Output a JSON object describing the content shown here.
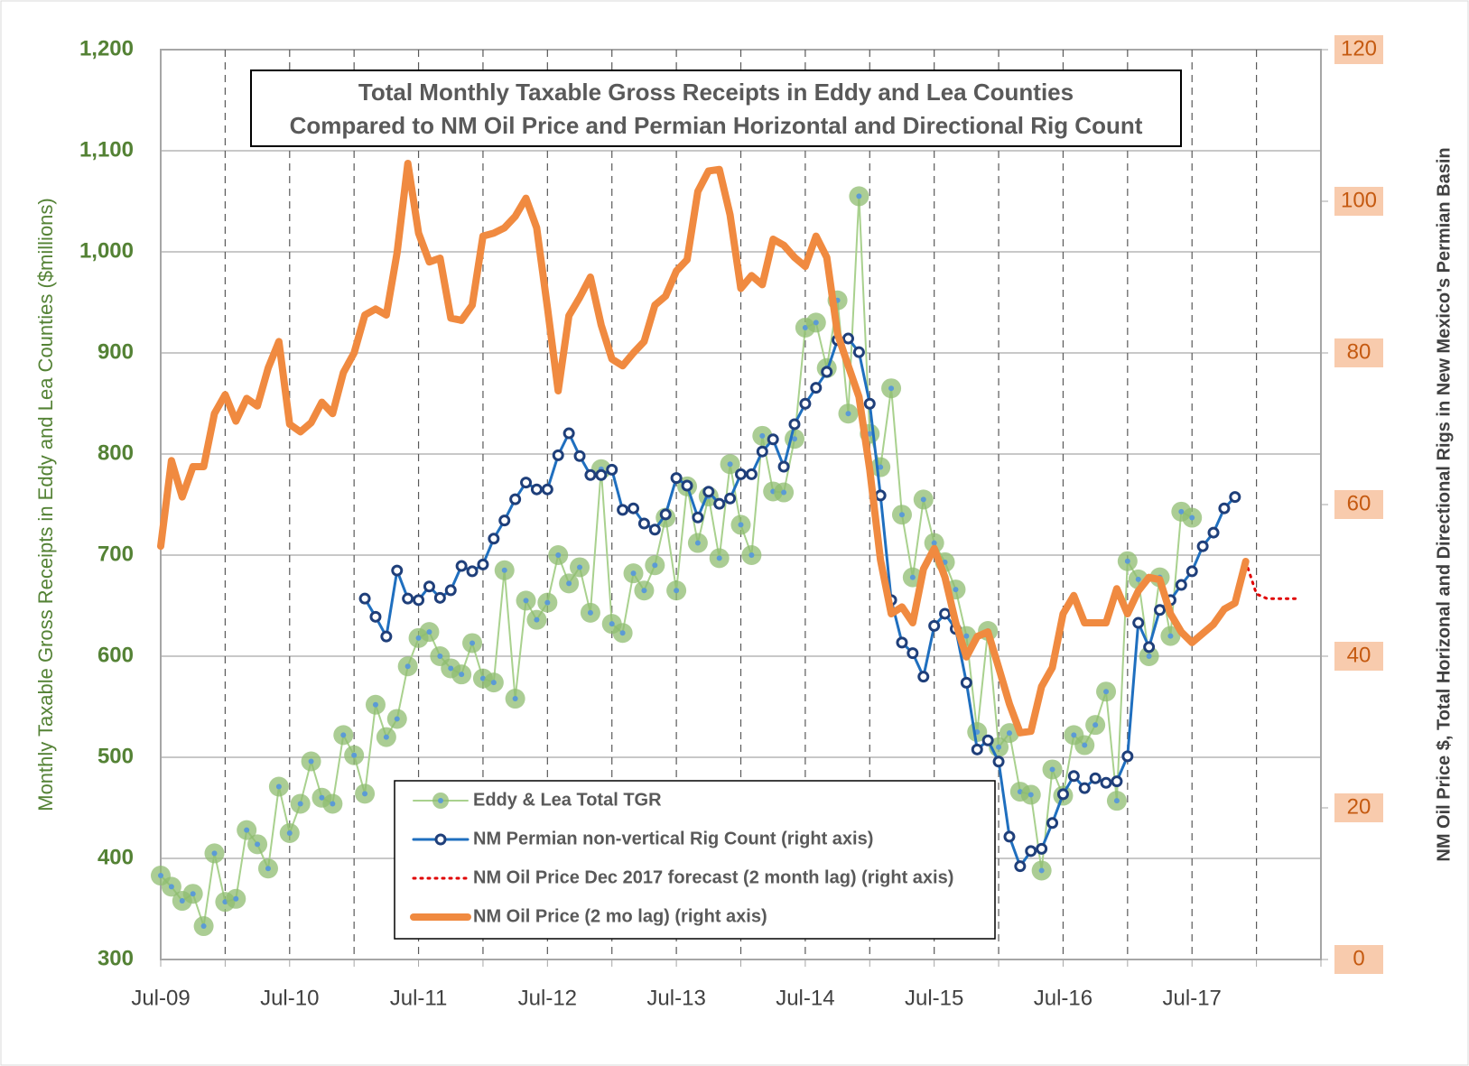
{
  "chart_data": {
    "type": "line",
    "title": "Total Monthly Taxable Gross Receipts in Eddy and Lea Counties",
    "subtitle": "Compared to NM Oil Price and Permian Horizontal and Directional Rig Count",
    "y_label": "Monthly Taxable Gross Receipts in Eddy and Lea Counties ($millions)",
    "y2_label": "NM Oil Price $, Total Horizonal and Directional Rigs in New Mexico's Permian Basin",
    "categories": [
      "Jul-09",
      null,
      null,
      null,
      null,
      null,
      null,
      null,
      null,
      null,
      null,
      null,
      "Jul-10",
      null,
      null,
      null,
      null,
      null,
      null,
      null,
      null,
      null,
      null,
      null,
      "Jul-11",
      null,
      null,
      null,
      null,
      null,
      null,
      null,
      null,
      null,
      null,
      null,
      "Jul-12",
      null,
      null,
      null,
      null,
      null,
      null,
      null,
      null,
      null,
      null,
      null,
      "Jul-13",
      null,
      null,
      null,
      null,
      null,
      null,
      null,
      null,
      null,
      null,
      null,
      "Jul-14",
      null,
      null,
      null,
      null,
      null,
      null,
      null,
      null,
      null,
      null,
      null,
      "Jul-15",
      null,
      null,
      null,
      null,
      null,
      null,
      null,
      null,
      null,
      null,
      null,
      "Jul-16",
      null,
      null,
      null,
      null,
      null,
      null,
      null,
      null,
      null,
      null,
      null,
      "Jul-17",
      null,
      null,
      null,
      null,
      null,
      null,
      null,
      null,
      null,
      null,
      null,
      null
    ],
    "ylim": [
      300,
      1200
    ],
    "yticks": [
      300,
      400,
      500,
      600,
      700,
      800,
      900,
      {
        "value": 1000,
        "label": "1,000"
      },
      {
        "value": 1100,
        "label": "1,100"
      },
      {
        "value": 1200,
        "label": "1,200"
      }
    ],
    "y2lim": [
      0,
      120
    ],
    "y2ticks": [
      0,
      20,
      40,
      60,
      80,
      100,
      120
    ],
    "grid": true,
    "series": [
      {
        "name": "Eddy & Lea Total TGR",
        "color": "#a9d18e",
        "marker_color": "#8fbc70",
        "marker": "dot",
        "width": 2,
        "values": [
          383,
          372,
          358,
          365,
          333,
          405,
          357,
          360,
          428,
          414,
          390,
          471,
          425,
          454,
          496,
          460,
          454,
          522,
          502,
          464,
          552,
          520,
          538,
          590,
          618,
          624,
          600,
          588,
          582,
          613,
          578,
          574,
          685,
          558,
          655,
          636,
          653,
          700,
          672,
          688,
          643,
          785,
          632,
          623,
          682,
          665,
          690,
          737,
          665,
          768,
          712,
          758,
          697,
          790,
          730,
          700,
          818,
          763,
          762,
          815,
          925,
          930,
          885,
          952,
          840,
          1055,
          820,
          787,
          865,
          740,
          678,
          755,
          712,
          693,
          666,
          620,
          525,
          625,
          510,
          524,
          466,
          463,
          388,
          488,
          462,
          522,
          512,
          532,
          565,
          457,
          694,
          676,
          600,
          678,
          620,
          743,
          737,
          null,
          null,
          null,
          null,
          null,
          null,
          null,
          null,
          null,
          null,
          null,
          null
        ]
      },
      {
        "name": "NM Permian non-vertical Rig Count (right axis)",
        "color": "#1f6fbf",
        "marker_color": "#1f3f7a",
        "marker": "ring",
        "width": 3,
        "axis": "y2",
        "values": [
          null,
          null,
          null,
          null,
          null,
          null,
          null,
          null,
          null,
          null,
          null,
          null,
          null,
          null,
          null,
          null,
          null,
          null,
          null,
          47.6,
          45.2,
          42.6,
          51.3,
          47.6,
          47.4,
          49.2,
          47.7,
          48.7,
          51.9,
          51.2,
          52.1,
          55.5,
          57.9,
          60.7,
          62.9,
          62,
          62,
          66.5,
          69.4,
          66.4,
          63.9,
          63.9,
          64.6,
          59.3,
          59.5,
          57.5,
          56.7,
          58.7,
          63.5,
          62.5,
          58.3,
          61.7,
          60.1,
          60.8,
          64,
          64,
          67,
          68.6,
          65,
          70.6,
          73.3,
          75.4,
          77.5,
          81.7,
          81.9,
          80.1,
          73.3,
          61.2,
          47.4,
          41.8,
          40.4,
          37.3,
          44,
          45.6,
          43.6,
          36.5,
          27.7,
          28.9,
          26.1,
          16.2,
          12.3,
          14.3,
          14.6,
          18,
          21.8,
          24.2,
          22.6,
          23.9,
          23.3,
          23.5,
          26.8,
          44.4,
          41.2,
          46.1,
          47.4,
          49.4,
          51.2,
          54.5,
          56.3,
          59.5,
          61,
          null,
          null,
          null,
          null,
          null,
          null,
          null,
          null
        ]
      },
      {
        "name": "NM Oil Price Dec 2017 forecast (2 month lag) (right axis)",
        "color": "#e00000",
        "marker": "none",
        "width": 3,
        "dash": "dotted",
        "axis": "y2",
        "values": [
          null,
          null,
          null,
          null,
          null,
          null,
          null,
          null,
          null,
          null,
          null,
          null,
          null,
          null,
          null,
          null,
          null,
          null,
          null,
          null,
          null,
          null,
          null,
          null,
          null,
          null,
          null,
          null,
          null,
          null,
          null,
          null,
          null,
          null,
          null,
          null,
          null,
          null,
          null,
          null,
          null,
          null,
          null,
          null,
          null,
          null,
          null,
          null,
          null,
          null,
          null,
          null,
          null,
          null,
          null,
          null,
          null,
          null,
          null,
          null,
          null,
          null,
          null,
          null,
          null,
          null,
          null,
          null,
          null,
          null,
          null,
          null,
          null,
          null,
          null,
          null,
          null,
          null,
          null,
          null,
          null,
          null,
          null,
          null,
          null,
          null,
          null,
          null,
          null,
          null,
          null,
          null,
          null,
          null,
          null,
          null,
          null,
          null,
          null,
          null,
          null,
          52.5,
          48.2,
          47.6,
          47.6,
          47.6,
          47.6,
          null,
          null
        ]
      },
      {
        "name": "NM Oil Price (2 mo lag) (right axis)",
        "color": "#f08a40",
        "marker": "none",
        "width": 8,
        "axis": "y2",
        "values": [
          54.5,
          65.8,
          61,
          65,
          65,
          72,
          74.5,
          71,
          74,
          73,
          78,
          81.5,
          70.6,
          69.6,
          70.8,
          73.5,
          72,
          77.4,
          80,
          85,
          85.8,
          85,
          93.2,
          105,
          95.8,
          92,
          92.5,
          84.6,
          84.3,
          86.3,
          95.4,
          95.8,
          96.5,
          98,
          100.4,
          96.5,
          86,
          75,
          84.9,
          87.3,
          90,
          83.7,
          79.2,
          78.3,
          80,
          81.5,
          86.3,
          87.5,
          90.8,
          92.3,
          101.3,
          104,
          104.2,
          98.2,
          88.5,
          90.2,
          89,
          95,
          94.2,
          92.6,
          91.4,
          95.4,
          92.6,
          82.5,
          78.3,
          74.2,
          64.6,
          52.7,
          45.6,
          46.5,
          44.4,
          51.5,
          54.2,
          50.4,
          44.4,
          39.9,
          42.6,
          43.2,
          38.5,
          33.7,
          29.9,
          30.1,
          36,
          38.5,
          45.6,
          48,
          44.4,
          44.4,
          44.4,
          48.9,
          45.6,
          48.6,
          50.4,
          50.1,
          45.6,
          43.2,
          41.8,
          43,
          44.2,
          46.2,
          47,
          52.5,
          null,
          null,
          null,
          null,
          null,
          null,
          null
        ]
      }
    ]
  }
}
